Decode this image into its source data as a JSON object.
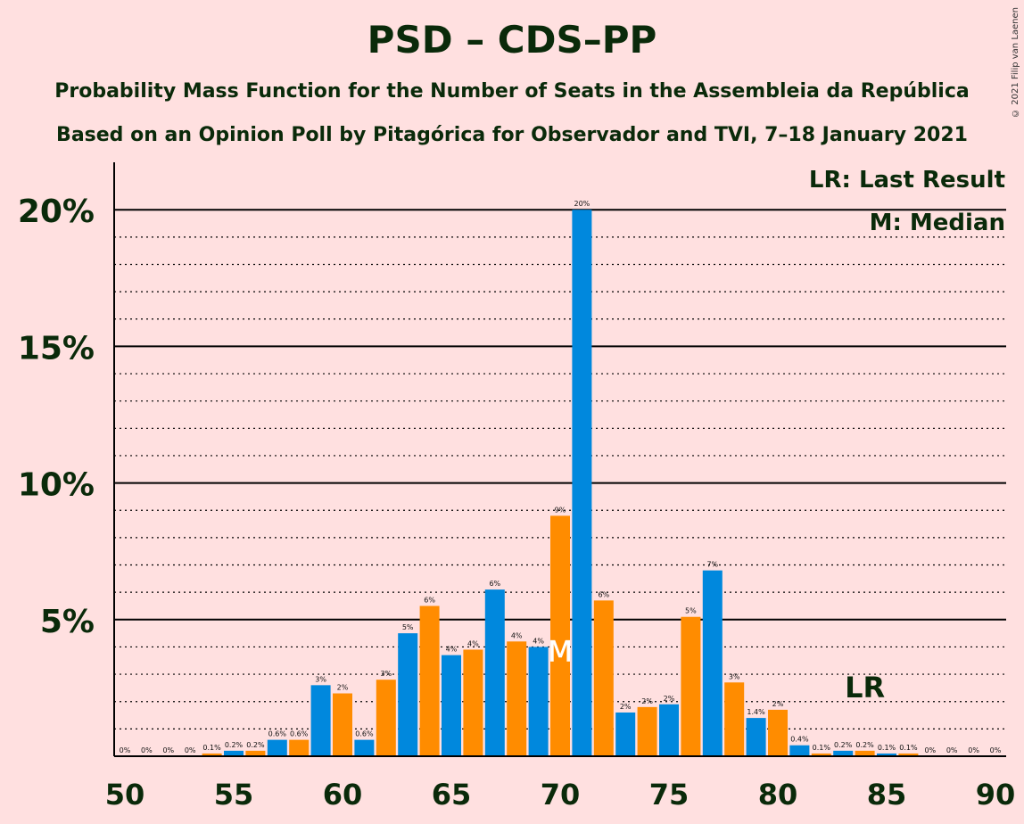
{
  "title": "PSD – CDS–PP",
  "subtitle1": "Probability Mass Function for the Number of Seats in the Assembleia da República",
  "subtitle2": "Based on an Opinion Poll by Pitagórica for Observador and TVI, 7–18 January 2021",
  "copyright": "© 2021 Filip van Laenen",
  "legend": {
    "lr": "LR: Last Result",
    "m": "M: Median"
  },
  "markers": {
    "median_label": "M",
    "median_seat": 70,
    "last_result_label": "LR",
    "last_result_seat": 84
  },
  "colors": {
    "background": "#FFE0E0",
    "blue": "#0088DD",
    "orange": "#FF8C00",
    "text": "#0A2A0A"
  },
  "chart_data": {
    "type": "bar",
    "x": [
      50,
      51,
      52,
      53,
      54,
      55,
      56,
      57,
      58,
      59,
      60,
      61,
      62,
      63,
      64,
      65,
      66,
      67,
      68,
      69,
      70,
      71,
      72,
      73,
      74,
      75,
      76,
      77,
      78,
      79,
      80,
      81,
      82,
      83,
      84,
      85,
      86,
      87,
      88,
      89,
      90
    ],
    "values": [
      0,
      0,
      0,
      0,
      0.1,
      0.2,
      0.2,
      0.6,
      0.6,
      2.6,
      2.3,
      0.6,
      2.8,
      4.5,
      5.5,
      3.7,
      3.9,
      6.1,
      4.2,
      4.0,
      8.8,
      20.0,
      5.7,
      1.6,
      1.8,
      1.9,
      5.1,
      6.8,
      2.7,
      1.4,
      1.7,
      0.4,
      0.1,
      0.2,
      0.2,
      0.1,
      0.1,
      0,
      0,
      0,
      0
    ],
    "labels": [
      "0%",
      "0%",
      "0%",
      "0%",
      "0.1%",
      "0.2%",
      "0.2%",
      "0.6%",
      "0.6%",
      "3%",
      "2%",
      "0.6%",
      "3%",
      "5%",
      "6%",
      "4%",
      "4%",
      "6%",
      "4%",
      "4%",
      "9%",
      "20%",
      "6%",
      "2%",
      "2%",
      "2%",
      "5%",
      "7%",
      "3%",
      "1.4%",
      "2%",
      "0.4%",
      "0.1%",
      "0.2%",
      "0.2%",
      "0.1%",
      "0.1%",
      "0%",
      "0%",
      "0%",
      "0%"
    ],
    "xticks": [
      "50",
      "55",
      "60",
      "65",
      "70",
      "75",
      "80",
      "85",
      "90"
    ],
    "yticks": [
      "5%",
      "10%",
      "15%",
      "20%"
    ],
    "ylim": [
      0,
      21
    ],
    "xlim": [
      50,
      90
    ]
  }
}
